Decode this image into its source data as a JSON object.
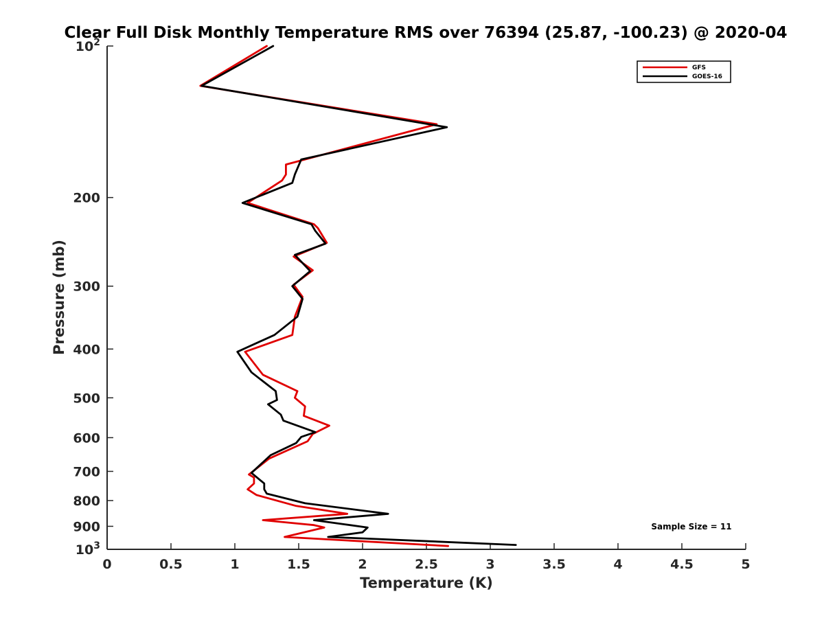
{
  "chart_data": {
    "type": "line",
    "title": "Clear Full Disk Monthly Temperature RMS over 76394 (25.87, -100.23) @ 2020-04",
    "xlabel": "Temperature (K)",
    "ylabel": "Pressure (mb)",
    "xlim": [
      0,
      5
    ],
    "ylim": [
      100,
      1000
    ],
    "y_scale": "log",
    "y_reversed": true,
    "grid": false,
    "legend_position": "top-right",
    "x_ticks": [
      "0",
      "0.5",
      "1",
      "1.5",
      "2",
      "2.5",
      "3",
      "3.5",
      "4",
      "4.5",
      "5"
    ],
    "y_ticks": [
      {
        "value": 100,
        "label": "10",
        "sup": "2"
      },
      {
        "value": 200,
        "label": "200"
      },
      {
        "value": 300,
        "label": "300"
      },
      {
        "value": 400,
        "label": "400"
      },
      {
        "value": 500,
        "label": "500"
      },
      {
        "value": 600,
        "label": "600"
      },
      {
        "value": 700,
        "label": "700"
      },
      {
        "value": 800,
        "label": "800"
      },
      {
        "value": 900,
        "label": "900"
      },
      {
        "value": 1000,
        "label": "10",
        "sup": "3"
      }
    ],
    "series": [
      {
        "name": "GFS",
        "color": "#e00000",
        "x": [
          1.25,
          0.73,
          2.58,
          1.4,
          1.4,
          1.37,
          1.1,
          1.62,
          1.65,
          1.72,
          1.46,
          1.61,
          1.46,
          1.53,
          1.47,
          1.45,
          1.08,
          1.22,
          1.49,
          1.47,
          1.55,
          1.54,
          1.74,
          1.61,
          1.57,
          1.27,
          1.11,
          1.15,
          1.15,
          1.1,
          1.17,
          1.48,
          1.88,
          1.22,
          1.62,
          1.7,
          1.62,
          1.39,
          2.67
        ],
        "y": [
          100,
          120,
          143,
          172,
          180,
          185,
          205,
          226,
          230,
          246,
          262,
          279,
          298,
          315,
          345,
          375,
          405,
          450,
          485,
          500,
          520,
          543,
          568,
          590,
          610,
          660,
          710,
          720,
          740,
          760,
          780,
          820,
          850,
          875,
          895,
          905,
          915,
          945,
          985
        ]
      },
      {
        "name": "GOES-16",
        "color": "#000000",
        "x": [
          1.3,
          0.74,
          2.66,
          1.52,
          1.47,
          1.45,
          1.06,
          1.6,
          1.63,
          1.71,
          1.47,
          1.59,
          1.45,
          1.53,
          1.49,
          1.31,
          1.02,
          1.13,
          1.32,
          1.33,
          1.26,
          1.36,
          1.38,
          1.63,
          1.52,
          1.48,
          1.28,
          1.13,
          1.23,
          1.23,
          1.25,
          1.55,
          2.2,
          1.62,
          2.04,
          2.0,
          1.73,
          3.2
        ],
        "y": [
          100,
          120,
          145,
          168,
          180,
          187,
          205,
          226,
          233,
          247,
          260,
          280,
          300,
          318,
          345,
          375,
          405,
          445,
          485,
          505,
          515,
          540,
          555,
          585,
          598,
          615,
          650,
          705,
          740,
          760,
          775,
          810,
          850,
          875,
          905,
          925,
          945,
          980
        ]
      }
    ],
    "annotations": [
      {
        "text": "Sample Size = 11"
      }
    ]
  }
}
